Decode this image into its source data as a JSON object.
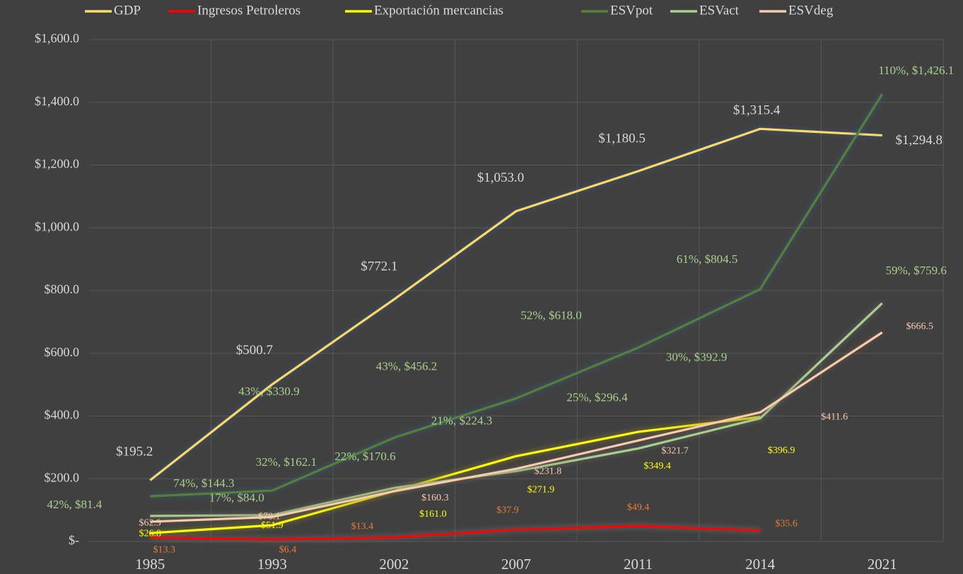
{
  "chart_data": {
    "type": "line",
    "categories": [
      "1985",
      "1993",
      "2002",
      "2007",
      "2011",
      "2014",
      "2021"
    ],
    "ylim": [
      0,
      1600
    ],
    "yticks": [
      {
        "value": 0,
        "label": "$-"
      },
      {
        "value": 200,
        "label": "$200.0"
      },
      {
        "value": 400,
        "label": "$400.0"
      },
      {
        "value": 600,
        "label": "$600.0"
      },
      {
        "value": 800,
        "label": "$800.0"
      },
      {
        "value": 1000,
        "label": "$1,000.0"
      },
      {
        "value": 1200,
        "label": "$1,200.0"
      },
      {
        "value": 1400,
        "label": "$1,400.0"
      },
      {
        "value": 1600,
        "label": "$1,600.0"
      }
    ],
    "grid": true,
    "legend": "top",
    "series": [
      {
        "name": "GDP",
        "color": "#ffd966",
        "label_color": "#d9d9d9",
        "values": [
          195.2,
          500.7,
          772.1,
          1053.0,
          1180.5,
          1315.4,
          1294.8
        ],
        "value_labels": [
          "$195.2",
          "$500.7",
          "$772.1",
          "$1,053.0",
          "$1,180.5",
          "$1,315.4",
          "$1,294.8"
        ]
      },
      {
        "name": "Ingresos Petroleros",
        "color": "#ff0000",
        "label_color": "#ed7d31",
        "values": [
          13.3,
          6.4,
          13.4,
          37.9,
          49.4,
          35.6,
          null
        ],
        "value_labels": [
          "$13.3",
          "$6.4",
          "$13.4",
          "$37.9",
          "$49.4",
          "$35.6",
          null
        ]
      },
      {
        "name": "Exportación mercancias",
        "color": "#ffff00",
        "label_color": "#ffff00",
        "values": [
          26.8,
          51.9,
          161.0,
          271.9,
          349.4,
          396.9,
          null
        ],
        "value_labels": [
          "$26.8",
          "$51.9",
          "$161.0",
          "$271.9",
          "$349.4",
          "$396.9",
          null
        ]
      },
      {
        "name": "ESVpot",
        "color": "#548235",
        "label_color": "#a9d18e",
        "values": [
          144.3,
          162.1,
          330.9,
          456.2,
          618.0,
          804.5,
          1426.1
        ],
        "value_labels": [
          "74%, $144.3",
          "32%, $162.1",
          "43%, $330.9",
          "43%, $456.2",
          "52%, $618.0",
          "61%, $804.5",
          "110%, $1,426.1"
        ]
      },
      {
        "name": "ESVact",
        "color": "#a9d18e",
        "label_color": "#a9d18e",
        "values": [
          81.4,
          84.0,
          170.6,
          224.3,
          296.4,
          392.9,
          759.6
        ],
        "value_labels": [
          "42%, $81.4",
          "17%, $84.0",
          "22%, $170.6",
          "21%, $224.3",
          "25%, $296.4",
          "30%, $392.9",
          "59%, $759.6"
        ]
      },
      {
        "name": "ESVdeg",
        "color": "#f8cbad",
        "label_color": "#f8cbad",
        "values": [
          62.9,
          78.1,
          160.3,
          231.8,
          321.7,
          411.6,
          666.5
        ],
        "value_labels": [
          "$62.9",
          "$78.1",
          "$160.3",
          "$231.8",
          "$321.7",
          "$411.6",
          "$666.5"
        ]
      }
    ]
  }
}
